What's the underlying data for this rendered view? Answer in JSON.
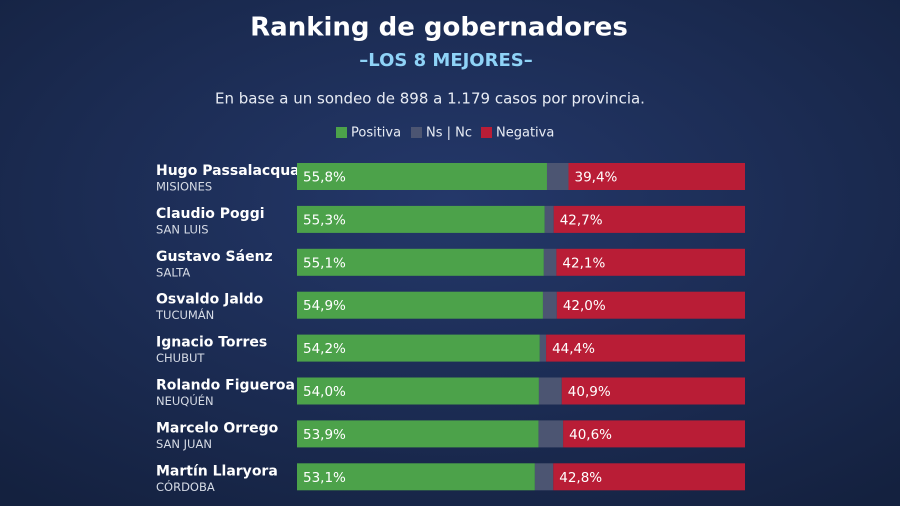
{
  "chart_data": {
    "type": "stacked-bar-horizontal",
    "title": "Ranking de gobernadores",
    "subtitle": "–LOS 8 MEJORES–",
    "note": "En base a un sondeo de 898 a 1.179 casos por provincia.",
    "categories": [
      "Hugo Passalacqua",
      "Claudio Poggi",
      "Gustavo Sáenz",
      "Osvaldo Jaldo",
      "Ignacio Torres",
      "Rolando Figueroa",
      "Marcelo Orrego",
      "Martín Llaryora"
    ],
    "provinces": [
      "MISIONES",
      "SAN LUIS",
      "SALTA",
      "TUCUMÁN",
      "CHUBUT",
      "NEUQÚÉN",
      "SAN JUAN",
      "CÓRDOBA"
    ],
    "series": [
      {
        "name": "Positiva",
        "color": "#4ca24a",
        "values": [
          55.8,
          55.3,
          55.1,
          54.9,
          54.2,
          54.0,
          53.9,
          53.1
        ],
        "value_labels": [
          "55,8%",
          "55,3%",
          "55,1%",
          "54,9%",
          "54,2%",
          "54,0%",
          "53,9%",
          "53,1%"
        ]
      },
      {
        "name": "Ns | Nc",
        "color": "#4c5572",
        "values": [
          4.8,
          2.0,
          2.8,
          3.1,
          1.4,
          5.1,
          5.5,
          4.1
        ]
      },
      {
        "name": "Negativa",
        "color": "#b91d36",
        "values": [
          39.4,
          42.7,
          42.1,
          42.0,
          44.4,
          40.9,
          40.6,
          42.8
        ],
        "value_labels": [
          "39,4%",
          "42,7%",
          "42,1%",
          "42,0%",
          "44,4%",
          "40,9%",
          "40,6%",
          "42,8%"
        ]
      }
    ],
    "xlim": [
      0,
      100
    ]
  }
}
